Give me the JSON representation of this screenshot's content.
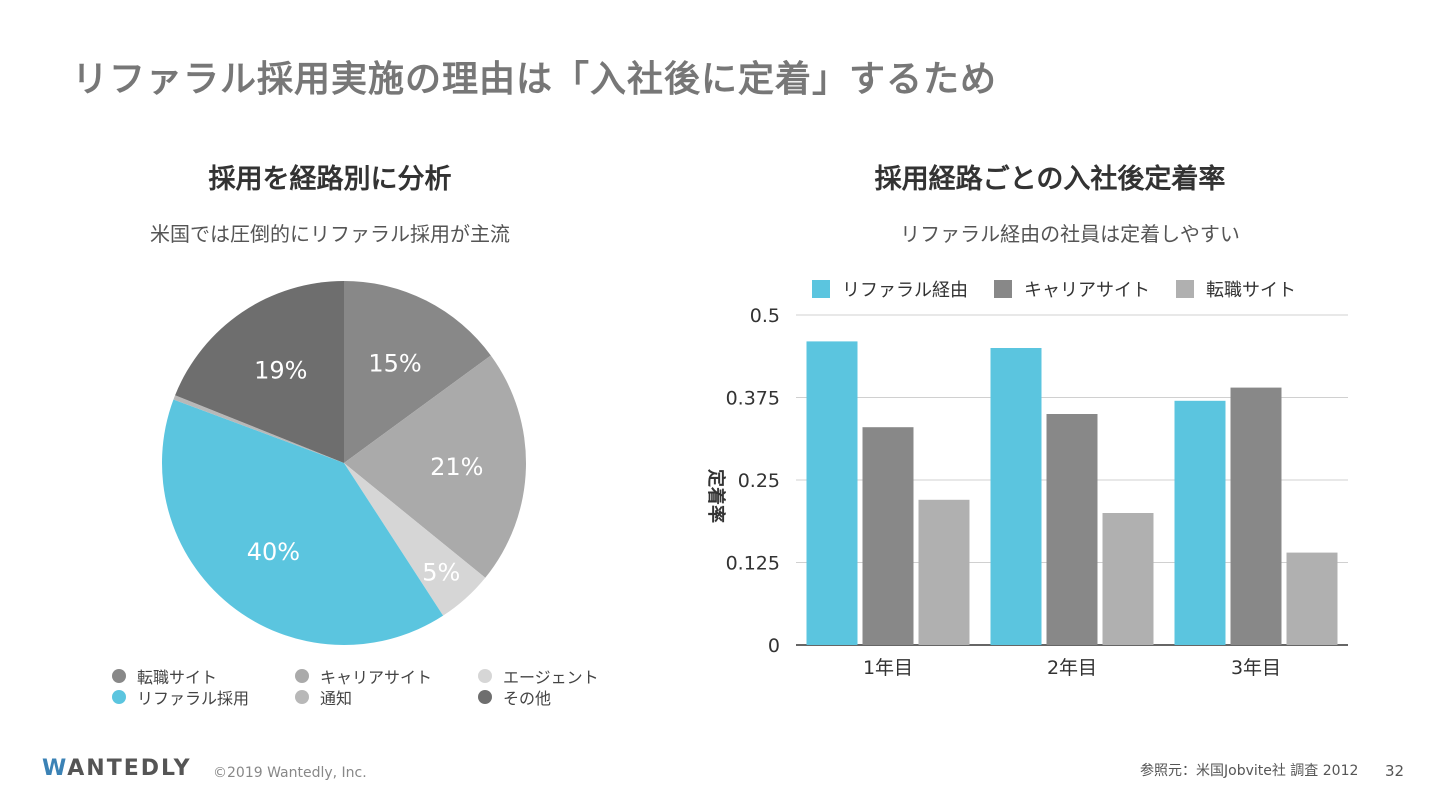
{
  "slide": {
    "title": "リファラル採用実施の理由は「入社後に定着」するため"
  },
  "left": {
    "title": "採用を経路別に分析",
    "subtitle": "米国では圧倒的にリファラル採用が主流"
  },
  "right": {
    "title": "採用経路ごとの入社後定着率",
    "subtitle": "リファラル経由の社員は定着しやすい"
  },
  "chart_data": [
    {
      "type": "pie",
      "slices": [
        {
          "label": "転職サイト",
          "value": 15,
          "display": "15%",
          "color": "#888888",
          "shown_in_legend": true
        },
        {
          "label": "キャリアサイト",
          "value": 21,
          "display": "21%",
          "color": "#aaaaaa",
          "shown_in_legend": true
        },
        {
          "label": "エージェント",
          "value": 5,
          "display": "5%",
          "color": "#d6d6d6",
          "shown_in_legend": true
        },
        {
          "label": "リファラル採用",
          "value": 40,
          "display": "40%",
          "color": "#5bc5df",
          "shown_in_legend": true
        },
        {
          "label": "通知",
          "value": 0.4,
          "display": "",
          "color": "#b8b8b8",
          "shown_in_legend": true
        },
        {
          "label": "その他",
          "value": 19,
          "display": "19%",
          "color": "#6e6e6e",
          "shown_in_legend": true
        }
      ],
      "legend_order": [
        "転職サイト",
        "キャリアサイト",
        "エージェント",
        "リファラル採用",
        "通知",
        "その他"
      ],
      "legend_position": "bottom"
    },
    {
      "type": "bar",
      "categories": [
        "1年目",
        "2年目",
        "3年目"
      ],
      "series": [
        {
          "name": "リファラル経由",
          "color": "#5bc5df",
          "values": [
            0.46,
            0.45,
            0.37
          ]
        },
        {
          "name": "キャリアサイト",
          "color": "#888888",
          "values": [
            0.33,
            0.35,
            0.39
          ]
        },
        {
          "name": "転職サイト",
          "color": "#b0b0b0",
          "values": [
            0.22,
            0.2,
            0.14
          ]
        }
      ],
      "ylabel": "定着率",
      "ylim": [
        0,
        0.5
      ],
      "yticks": [
        "0",
        "0.125",
        "0.25",
        "0.375",
        "0.5"
      ],
      "grid": true,
      "legend_position": "top"
    }
  ],
  "footer": {
    "logo_first": "W",
    "logo_rest": "ANTEDLY",
    "copyright": "©2019 Wantedly, Inc.",
    "source": "参照元：米国Jobvite社 調査 2012",
    "page_number": "32"
  }
}
